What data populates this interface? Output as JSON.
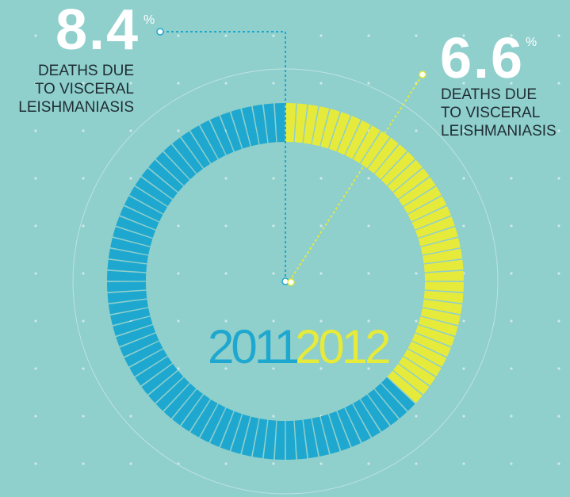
{
  "chart_data": {
    "type": "pie",
    "series": [
      {
        "year": "2011",
        "value": 8.4,
        "value_text": "8.4",
        "unit": "%",
        "caption": [
          "DEATHS DUE",
          "TO VISCERAL",
          "LEISHMANIASIS"
        ]
      },
      {
        "year": "2012",
        "value": 6.6,
        "value_text": "6.6",
        "unit": "%",
        "caption": [
          "DEATHS DUE",
          "TO VISCERAL",
          "LEISHMANIASIS"
        ]
      }
    ],
    "ring": {
      "segments_total": 100,
      "segments": [
        {
          "year": "2011",
          "count": 63,
          "color": "#1fa8cf"
        },
        {
          "year": "2012",
          "count": 37,
          "color": "#e6ea3a"
        }
      ],
      "unfilled_color": "#9ebfbd"
    }
  },
  "colors": {
    "background": "#8fcfcc",
    "year_2011": "#1fa8cf",
    "year_2012": "#e6ea3a",
    "number": "#ffffff",
    "caption": "#1f2d33",
    "connector_2011": "#1fa8cf",
    "connector_2012": "#e6ea3a",
    "grid_dots": "#cfe9e7"
  }
}
